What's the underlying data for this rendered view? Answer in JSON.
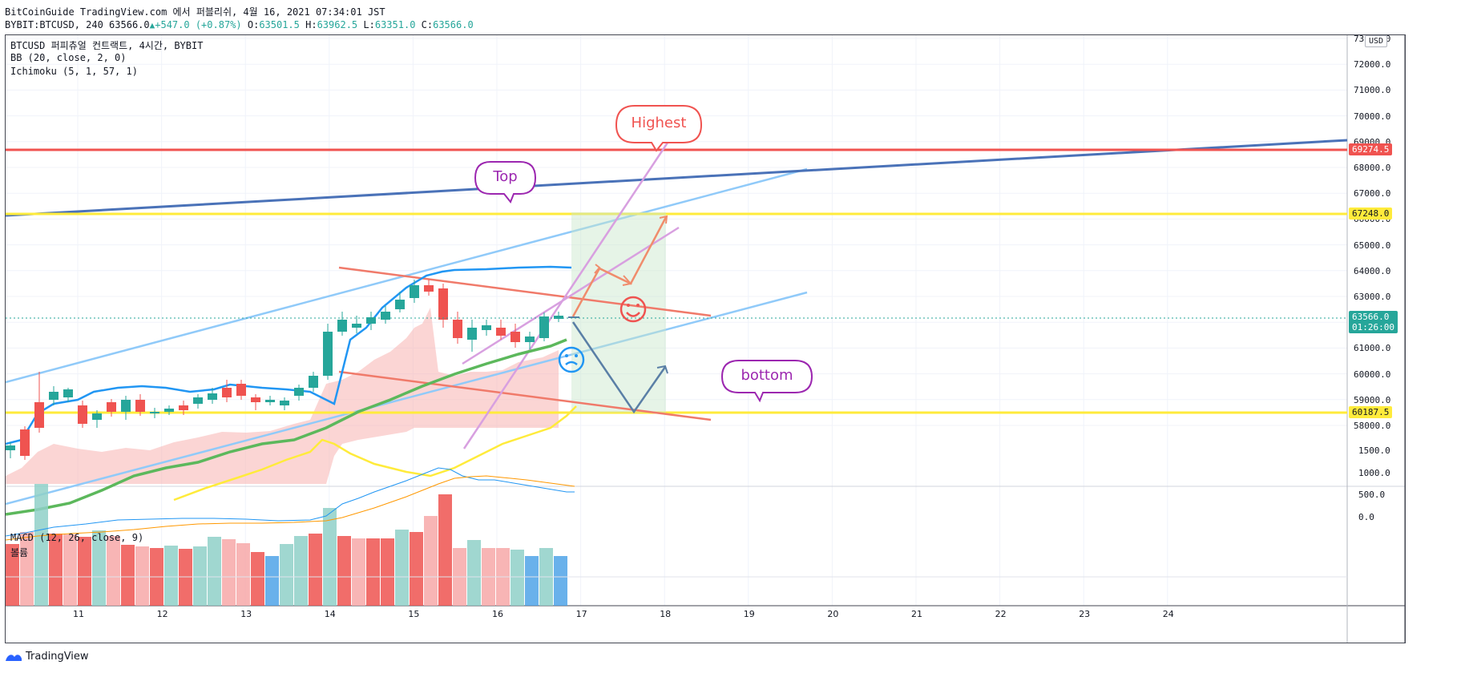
{
  "header": {
    "publish_line": "BitCoinGuide TradingView.com 에서 퍼블리쉬, 4월 16, 2021 07:34:01 JST",
    "symbol_info": "BYBIT:BTCUSD, 240 63566.0",
    "triangle": "▲",
    "change": "+547.0 (+0.87%)",
    "o_label": "O:",
    "o_value": "63501.5",
    "h_label": "H:",
    "h_value": "63962.5",
    "l_label": "L:",
    "l_value": "63351.0",
    "c_label": "C:",
    "c_value": "63566.0"
  },
  "legend": {
    "title": "BTCUSD 퍼피츄얼 컨트랙트, 4시간, BYBIT",
    "bb": "BB (20, close, 2, 0)",
    "ichimoku": "Ichimoku (5, 1, 57, 1)",
    "macd": "MACD (12, 26, close, 9)",
    "volume": "볼륨"
  },
  "currency": "USD",
  "annotations": {
    "highest": "Highest",
    "top": "Top",
    "bottom": "bottom",
    "smile_icon": "smile-icon",
    "confused_icon": "confused-face-icon"
  },
  "price_axis": [
    "73000.0",
    "72000.0",
    "71000.0",
    "70000.0",
    "69000.0",
    "68000.0",
    "67000.0",
    "66000.0",
    "65000.0",
    "64000.0",
    "63000.0",
    "62000.0",
    "61000.0",
    "60000.0",
    "59000.0",
    "58000.0"
  ],
  "macd_axis": [
    "1500.0",
    "1000.0",
    "500.0",
    "0.0"
  ],
  "price_tags": {
    "level_high": "69274.5",
    "level_mid": "67248.0",
    "current": "63566.0",
    "countdown": "01:26:00",
    "level_low": "60187.5"
  },
  "time_axis": [
    "11",
    "12",
    "13",
    "14",
    "15",
    "16",
    "17",
    "18",
    "19",
    "20",
    "21",
    "22",
    "23",
    "24"
  ],
  "brand": "TradingView",
  "colors": {
    "up": "#26a69a",
    "down": "#ef5350",
    "red_line": "#f05350",
    "yellow_line": "#ffeb3b",
    "blue_line": "#4a72b8"
  }
}
